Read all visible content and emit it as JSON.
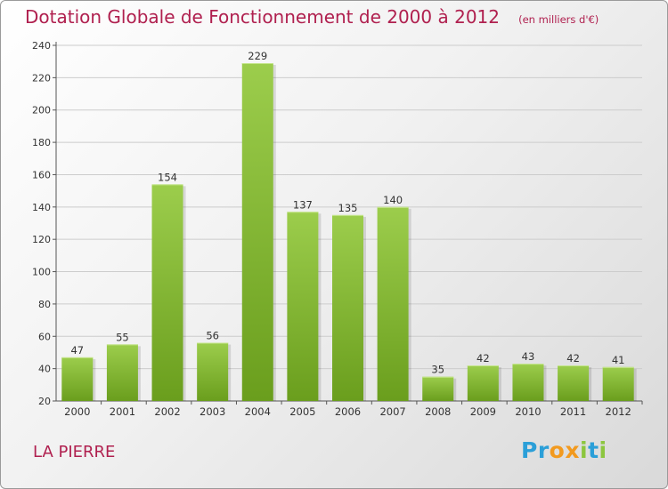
{
  "title": "Dotation Globale de Fonctionnement de 2000 à 2012",
  "unit": "(en milliers d'€)",
  "commune": "LA PIERRE",
  "logo": {
    "text": "Proxiti",
    "letters": [
      {
        "ch": "P",
        "color": "#2b9fd8"
      },
      {
        "ch": "r",
        "color": "#2b9fd8"
      },
      {
        "ch": "o",
        "color": "#f29a1f"
      },
      {
        "ch": "x",
        "color": "#f29a1f"
      },
      {
        "ch": "i",
        "color": "#8cc63f"
      },
      {
        "ch": "t",
        "color": "#2b9fd8"
      },
      {
        "ch": "i",
        "color": "#8cc63f"
      }
    ]
  },
  "colors": {
    "title": "#b0204f",
    "bar_top": "#9ccd4c",
    "bar_bottom": "#6a9e1d",
    "grid": "#cccccc",
    "axis": "#555555"
  },
  "chart_data": {
    "type": "bar",
    "categories": [
      "2000",
      "2001",
      "2002",
      "2003",
      "2004",
      "2005",
      "2006",
      "2007",
      "2008",
      "2009",
      "2010",
      "2011",
      "2012"
    ],
    "values": [
      47,
      55,
      154,
      56,
      229,
      137,
      135,
      140,
      35,
      42,
      43,
      42,
      41
    ],
    "ylim": [
      20,
      240
    ],
    "yticks": [
      20,
      40,
      60,
      80,
      100,
      120,
      140,
      160,
      180,
      200,
      220,
      240
    ],
    "grid": true,
    "data_labels": true
  }
}
